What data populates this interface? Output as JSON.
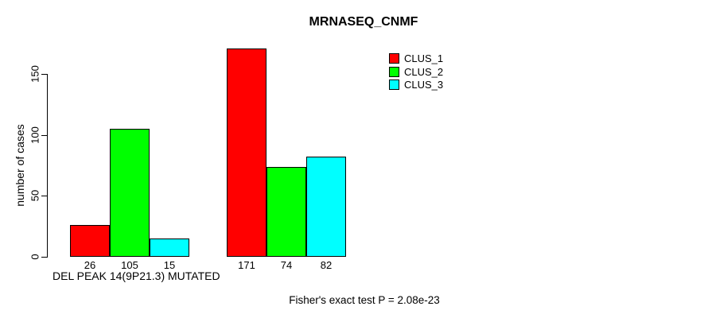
{
  "chart_data": {
    "type": "bar",
    "title": "MRNASEQ_CNMF",
    "ylabel": "number of cases",
    "xlabel": "DEL PEAK 14(9P21.3) MUTATED",
    "footnote": "Fisher's exact test P = 2.08e-23",
    "yticks": [
      0,
      50,
      100,
      150
    ],
    "ylim": [
      0,
      172
    ],
    "grid": false,
    "legend_position": "top-right-inside",
    "bar_value_labels_shown": true,
    "groups": 2,
    "series": [
      {
        "name": "CLUS_1",
        "color": "#ff0000",
        "values": [
          26,
          171
        ]
      },
      {
        "name": "CLUS_2",
        "color": "#00ff00",
        "values": [
          105,
          74
        ]
      },
      {
        "name": "CLUS_3",
        "color": "#00ffff",
        "values": [
          15,
          82
        ]
      }
    ]
  },
  "style": {
    "background": "#ffffff",
    "axis_color": "#000000",
    "text_color": "#000000"
  }
}
